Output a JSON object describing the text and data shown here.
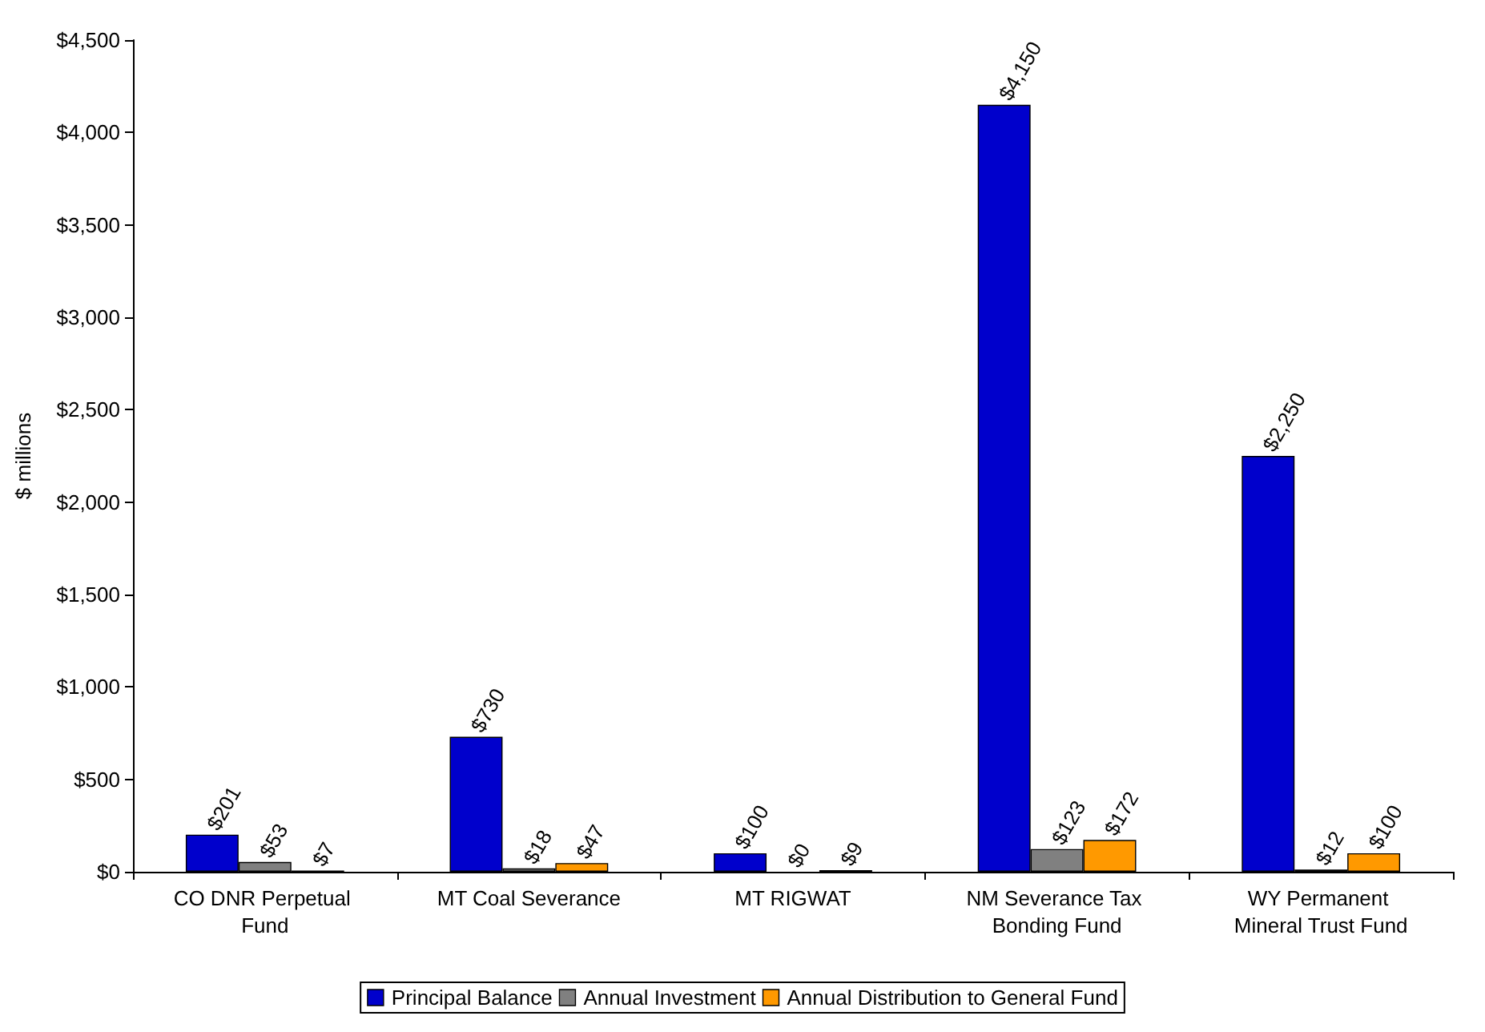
{
  "chart_data": {
    "type": "bar",
    "ylabel": "$ millions",
    "categories": [
      "CO DNR Perpetual Fund",
      "MT Coal Severance",
      "MT RIGWAT",
      "NM Severance Tax Bonding Fund",
      "WY Permanent Mineral Trust Fund"
    ],
    "series": [
      {
        "name": "Principal Balance",
        "color": "#0000cc",
        "values": [
          201,
          730,
          100,
          4150,
          2250
        ],
        "value_labels": [
          "$201",
          "$730",
          "$100",
          "$4,150",
          "$2,250"
        ]
      },
      {
        "name": "Annual Investment",
        "color": "#808080",
        "values": [
          53,
          18,
          0,
          123,
          12
        ],
        "value_labels": [
          "$53",
          "$18",
          "$0",
          "$123",
          "$12"
        ]
      },
      {
        "name": "Annual Distribution to General Fund",
        "color": "#ff9900",
        "values": [
          7,
          47,
          9,
          172,
          100
        ],
        "value_labels": [
          "$7",
          "$47",
          "$9",
          "$172",
          "$100"
        ]
      }
    ],
    "ylim": [
      0,
      4500
    ],
    "yticks": [
      {
        "value": 0,
        "label": "$0"
      },
      {
        "value": 500,
        "label": "$500"
      },
      {
        "value": 1000,
        "label": "$1,000"
      },
      {
        "value": 1500,
        "label": "$1,500"
      },
      {
        "value": 2000,
        "label": "$2,000"
      },
      {
        "value": 2500,
        "label": "$2,500"
      },
      {
        "value": 3000,
        "label": "$3,000"
      },
      {
        "value": 3500,
        "label": "$3,500"
      },
      {
        "value": 4000,
        "label": "$4,000"
      },
      {
        "value": 4500,
        "label": "$4,500"
      }
    ],
    "grid": false,
    "legend": "bottom"
  }
}
